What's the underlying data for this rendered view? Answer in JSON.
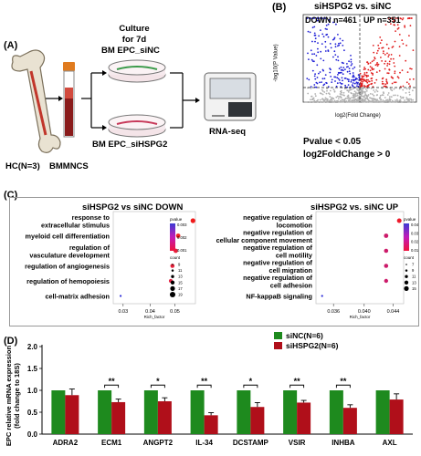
{
  "panel_a": {
    "letter": "(A)",
    "culture": "Culture\nfor 7d",
    "bm_nc": "BM EPC_siNC",
    "bm_hspg2": "BM EPC_siHSPG2",
    "rnaseq": "RNA-seq",
    "hc": "HC(N=3)",
    "bmmncs": "BMMNCS"
  },
  "panel_b": {
    "letter": "(B)",
    "title": "siHSPG2 vs. siNC",
    "down": "DOWN n=461",
    "up": "UP n=351",
    "ylabel": "-log10(P Value)",
    "xlabel": "log2(Fold Change)",
    "criteria1": "Pvalue < 0.05",
    "criteria2": "log2FoldChange > 0",
    "colors": {
      "down": "#1f1fd6",
      "up": "#e01b1b",
      "ns": "#b0b0b0"
    }
  },
  "panel_c": {
    "letter": "(C)",
    "left": {
      "title": "siHSPG2  vs siNC DOWN",
      "terms": [
        "response to\nextracellular stimulus",
        "myeloid cell differentiation",
        "regulation of\nvasculature development",
        "regulation of angiogenesis",
        "regulation of hemopoiesis",
        "cell-matrix adhesion"
      ],
      "x_ticks": [
        "0.03",
        "0.04",
        "0.05"
      ],
      "xlabel": "Rich_factor",
      "legend_p_title": "pvalue",
      "legend_p_ticks": [
        "0.003",
        "0.002",
        "0.001"
      ],
      "legend_c_title": "count",
      "legend_c_ticks": [
        "9",
        "11",
        "13",
        "15",
        "17",
        "19"
      ]
    },
    "right": {
      "title": "siHSPG2  vs. siNC UP",
      "terms": [
        "negative regulation of\nlocomotion",
        "negative regulation of\ncellular component movement",
        "negative regulation of\ncell motility",
        "negative regulation of\ncell migration",
        "negative regulation of\ncell adhesion",
        "NF-kappaB signaling"
      ],
      "x_ticks": [
        "0.036",
        "0.040",
        "0.044"
      ],
      "xlabel": "Rich_factor",
      "legend_p_title": "pvalue",
      "legend_p_ticks": [
        "0.04",
        "0.03",
        "0.02",
        "0.01"
      ],
      "legend_c_title": "count",
      "legend_c_ticks": [
        "7",
        "9",
        "11",
        "13",
        "15"
      ]
    }
  },
  "panel_d": {
    "letter": "(D)",
    "chart_data": {
      "type": "bar",
      "categories": [
        "ADRA2",
        "ECM1",
        "ANGPT2",
        "IL-34",
        "DCSTAMP",
        "VSIR",
        "INHBA",
        "AXL"
      ],
      "series": [
        {
          "name": "siNC(N=6)",
          "color": "#1e8a1e",
          "values": [
            1,
            1,
            1,
            1,
            1,
            1,
            1,
            1
          ],
          "errors": [
            0,
            0,
            0,
            0,
            0,
            0,
            0,
            0
          ]
        },
        {
          "name": "siHSPG2(N=6)",
          "color": "#b00f1a",
          "values": [
            0.89,
            0.73,
            0.75,
            0.43,
            0.62,
            0.72,
            0.6,
            0.79
          ],
          "errors": [
            0.14,
            0.07,
            0.08,
            0.06,
            0.1,
            0.05,
            0.07,
            0.13
          ]
        }
      ],
      "significance": [
        "",
        "**",
        "*",
        "**",
        "*",
        "**",
        "**",
        ""
      ],
      "ylabel": "EPC relative mRNA expression\n(fold change to 18S)",
      "yticks": [
        "0.0",
        "0.5",
        "1.0",
        "1.5",
        "2.0"
      ],
      "ylim": [
        0,
        2.0
      ]
    }
  }
}
